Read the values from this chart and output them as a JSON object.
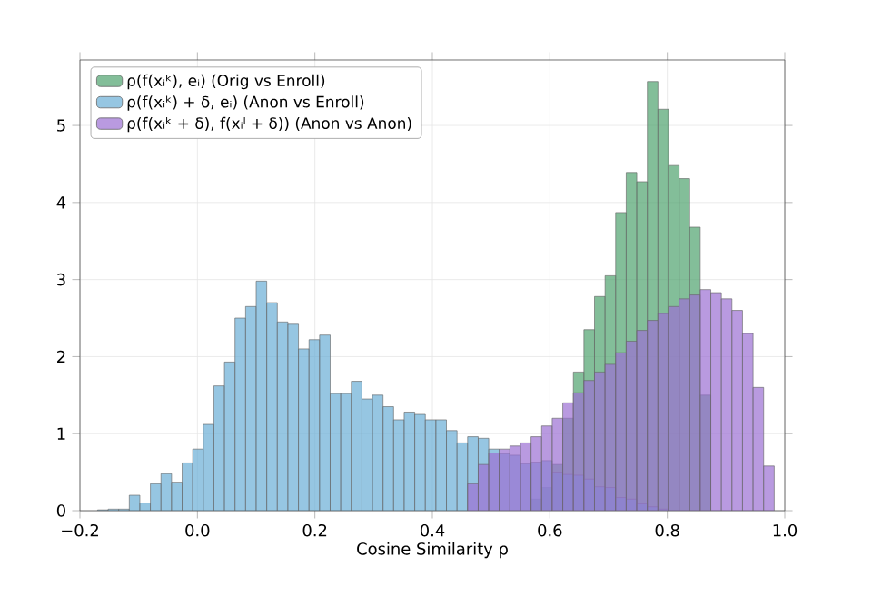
{
  "chart_data": {
    "type": "histogram",
    "xlabel": "Cosine Similarity ρ",
    "xlim": [
      -0.2,
      1.0
    ],
    "ylim": [
      0,
      5.85
    ],
    "xticks": [
      {
        "value": -0.2,
        "label": "−0.2"
      },
      {
        "value": 0,
        "label": "0.0"
      },
      0.2,
      0.4,
      0.6,
      0.8,
      {
        "value": 1,
        "label": "1.0"
      }
    ],
    "yticks": [
      0,
      1,
      2,
      3,
      4,
      5
    ],
    "grid": true,
    "legend": "top left",
    "bins": [
      -0.17,
      -0.152,
      -0.134,
      -0.116,
      -0.098,
      -0.08,
      -0.062,
      -0.044,
      -0.026,
      -0.008,
      0.01,
      0.028,
      0.046,
      0.064,
      0.082,
      0.1,
      0.118,
      0.136,
      0.154,
      0.172,
      0.19,
      0.208,
      0.226,
      0.244,
      0.262,
      0.28,
      0.298,
      0.316,
      0.334,
      0.352,
      0.37,
      0.388,
      0.406,
      0.424,
      0.442,
      0.46,
      0.478,
      0.496,
      0.514,
      0.532,
      0.55,
      0.568,
      0.586,
      0.604,
      0.622,
      0.64,
      0.658,
      0.676,
      0.694,
      0.712,
      0.73,
      0.748,
      0.766,
      0.784,
      0.802,
      0.82,
      0.838,
      0.856,
      0.874,
      0.892,
      0.91,
      0.928,
      0.946,
      0.964,
      0.982,
      1.0
    ],
    "series": [
      {
        "name": "ρ(f(xᵢᵏ), eᵢ) (Orig vs Enroll)",
        "color": "#4fa36e",
        "values": [
          null,
          null,
          null,
          null,
          null,
          null,
          null,
          null,
          null,
          null,
          null,
          null,
          null,
          null,
          null,
          null,
          null,
          null,
          null,
          null,
          null,
          null,
          null,
          null,
          null,
          null,
          null,
          null,
          null,
          null,
          null,
          null,
          null,
          null,
          null,
          null,
          null,
          null,
          null,
          null,
          null,
          0.15,
          0.3,
          0.6,
          1.2,
          1.8,
          2.35,
          2.78,
          3.05,
          3.87,
          4.39,
          4.27,
          5.57,
          5.21,
          4.48,
          4.31,
          3.68,
          1.5,
          null,
          null,
          null,
          null,
          null,
          null,
          null
        ]
      },
      {
        "name": "ρ(f(xᵢᵏ) + δ, eᵢ) (Anon vs Enroll)",
        "color": "#6aaed6",
        "values": [
          0.01,
          0.02,
          0.02,
          0.2,
          0.1,
          0.35,
          0.48,
          0.37,
          0.62,
          0.8,
          1.12,
          1.62,
          1.93,
          2.5,
          2.65,
          2.98,
          2.7,
          2.45,
          2.42,
          2.1,
          2.22,
          2.28,
          1.52,
          1.52,
          1.68,
          1.45,
          1.5,
          1.35,
          1.18,
          1.28,
          1.25,
          1.18,
          1.18,
          1.04,
          0.88,
          0.96,
          0.94,
          0.8,
          0.74,
          0.72,
          0.61,
          0.63,
          0.65,
          0.5,
          0.47,
          0.46,
          0.41,
          0.31,
          0.3,
          0.17,
          0.15,
          0.09,
          0.05,
          0.02,
          null,
          null,
          null,
          null,
          null,
          null,
          null,
          null,
          null,
          null,
          null
        ]
      },
      {
        "name": "ρ(f(xᵢᵏ + δ), f(xᵢˡ + δ)) (Anon vs Anon)",
        "color": "#9b6fd3",
        "values": [
          null,
          null,
          null,
          null,
          null,
          null,
          null,
          null,
          null,
          null,
          null,
          null,
          null,
          null,
          null,
          null,
          null,
          null,
          null,
          null,
          null,
          null,
          null,
          null,
          null,
          null,
          null,
          null,
          null,
          null,
          null,
          null,
          null,
          null,
          null,
          0.35,
          0.6,
          0.75,
          0.8,
          0.84,
          0.88,
          0.96,
          1.1,
          1.2,
          1.4,
          1.53,
          1.69,
          1.8,
          1.9,
          2.05,
          2.2,
          2.34,
          2.47,
          2.56,
          2.65,
          2.75,
          2.8,
          2.87,
          2.83,
          2.75,
          2.6,
          2.3,
          1.6,
          0.58,
          null
        ]
      }
    ]
  }
}
